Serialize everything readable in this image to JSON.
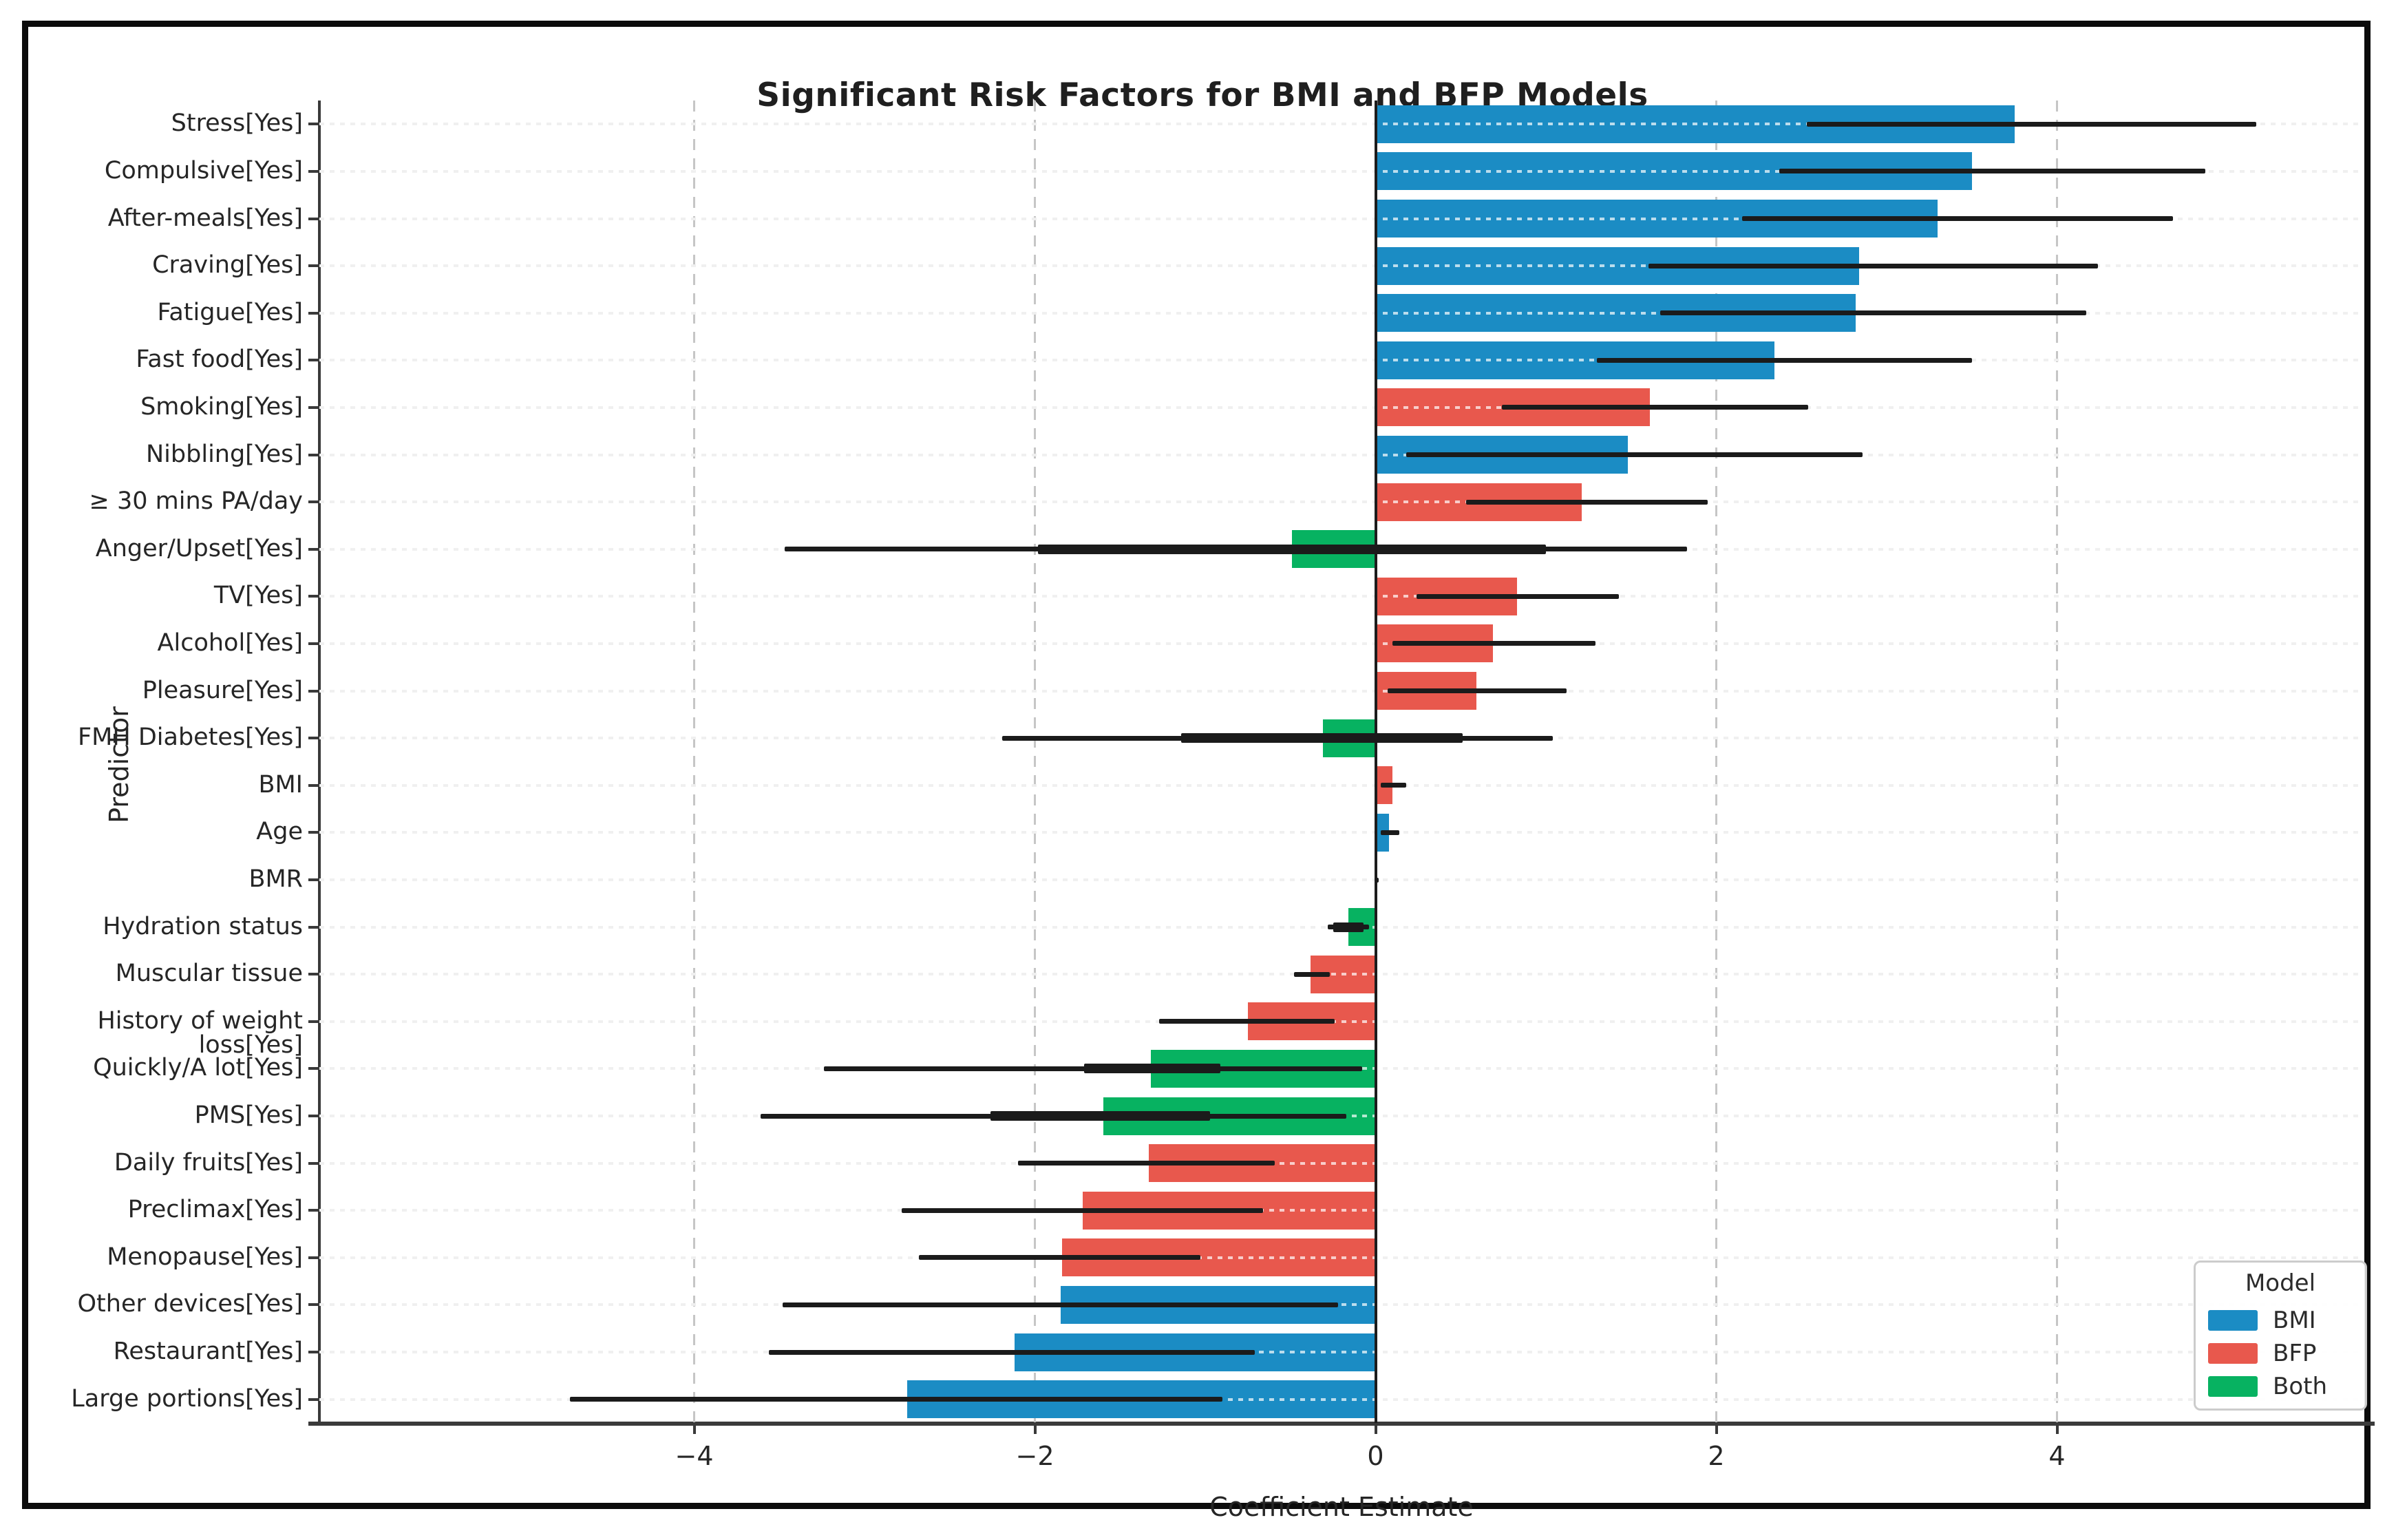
{
  "chart_data": {
    "type": "bar",
    "orientation": "horizontal",
    "title": "Significant Risk Factors for BMI and BFP Models",
    "xlabel": "Coefficient Estimate",
    "ylabel": "Predictor",
    "xlim": [
      -6.2,
      5.8
    ],
    "x_ticks": [
      -4,
      -2,
      0,
      2,
      4
    ],
    "grid": "horizontal-dotted and vertical-dashed, zero line solid",
    "legend": {
      "title": "Model",
      "position": "lower-right",
      "items": [
        {
          "label": "BMI",
          "color": "#1b8cc4"
        },
        {
          "label": "BFP",
          "color": "#e8584d"
        },
        {
          "label": "Both",
          "color": "#07b261"
        }
      ]
    },
    "rows": [
      {
        "predictor": "Stress[Yes]",
        "model": "BMI",
        "value": 3.75,
        "ci": [
          2.53,
          5.17
        ]
      },
      {
        "predictor": "Compulsive[Yes]",
        "model": "BMI",
        "value": 3.5,
        "ci": [
          2.37,
          4.87
        ]
      },
      {
        "predictor": "After-meals[Yes]",
        "model": "BMI",
        "value": 3.3,
        "ci": [
          2.15,
          4.68
        ]
      },
      {
        "predictor": "Craving[Yes]",
        "model": "BMI",
        "value": 2.84,
        "ci": [
          1.6,
          4.24
        ]
      },
      {
        "predictor": "Fatigue[Yes]",
        "model": "BMI",
        "value": 2.82,
        "ci": [
          1.67,
          4.17
        ]
      },
      {
        "predictor": "Fast food[Yes]",
        "model": "BMI",
        "value": 2.34,
        "ci": [
          1.3,
          3.5
        ]
      },
      {
        "predictor": "Smoking[Yes]",
        "model": "BFP",
        "value": 1.61,
        "ci": [
          0.74,
          2.54
        ]
      },
      {
        "predictor": "Nibbling[Yes]",
        "model": "BMI",
        "value": 1.48,
        "ci": [
          0.18,
          2.86
        ]
      },
      {
        "predictor": "≥ 30 mins PA/day",
        "model": "BFP",
        "value": 1.21,
        "ci": [
          0.53,
          1.95
        ]
      },
      {
        "predictor": "Anger/Upset[Yes]",
        "model": "Both",
        "value": -0.49,
        "ci": [
          -3.47,
          1.83
        ],
        "ci_inner": [
          -1.98,
          1.0
        ]
      },
      {
        "predictor": "TV[Yes]",
        "model": "BFP",
        "value": 0.83,
        "ci": [
          0.24,
          1.43
        ]
      },
      {
        "predictor": "Alcohol[Yes]",
        "model": "BFP",
        "value": 0.69,
        "ci": [
          0.1,
          1.29
        ]
      },
      {
        "predictor": "Pleasure[Yes]",
        "model": "BFP",
        "value": 0.59,
        "ci": [
          0.07,
          1.12
        ]
      },
      {
        "predictor": "FMH Diabetes[Yes]",
        "model": "Both",
        "value": -0.31,
        "ci": [
          -2.19,
          1.04
        ],
        "ci_inner": [
          -1.14,
          0.51
        ]
      },
      {
        "predictor": "BMI",
        "model": "BFP",
        "value": 0.1,
        "ci": [
          0.03,
          0.18
        ]
      },
      {
        "predictor": "Age",
        "model": "BMI",
        "value": 0.08,
        "ci": [
          0.03,
          0.14
        ]
      },
      {
        "predictor": "BMR",
        "model": "BMI",
        "value": 0.001,
        "ci": [
          0.0,
          0.002
        ]
      },
      {
        "predictor": "Hydration status",
        "model": "Both",
        "value": -0.16,
        "ci": [
          -0.28,
          -0.04
        ],
        "ci_inner": [
          -0.25,
          -0.07
        ]
      },
      {
        "predictor": "Muscular tissue",
        "model": "BFP",
        "value": -0.38,
        "ci": [
          -0.48,
          -0.27
        ]
      },
      {
        "predictor": "History of weight loss[Yes]",
        "model": "BFP",
        "value": -0.75,
        "ci": [
          -1.27,
          -0.24
        ]
      },
      {
        "predictor": "Quickly/A lot[Yes]",
        "model": "Both",
        "value": -1.32,
        "ci": [
          -3.24,
          -0.08
        ],
        "ci_inner": [
          -1.71,
          -0.91
        ]
      },
      {
        "predictor": "PMS[Yes]",
        "model": "Both",
        "value": -1.6,
        "ci": [
          -3.61,
          -0.17
        ],
        "ci_inner": [
          -2.26,
          -0.97
        ]
      },
      {
        "predictor": "Daily fruits[Yes]",
        "model": "BFP",
        "value": -1.33,
        "ci": [
          -2.1,
          -0.59
        ]
      },
      {
        "predictor": "Preclimax[Yes]",
        "model": "BFP",
        "value": -1.72,
        "ci": [
          -2.78,
          -0.66
        ]
      },
      {
        "predictor": "Menopause[Yes]",
        "model": "BFP",
        "value": -1.84,
        "ci": [
          -2.68,
          -1.03
        ]
      },
      {
        "predictor": "Other devices[Yes]",
        "model": "BMI",
        "value": -1.85,
        "ci": [
          -3.48,
          -0.22
        ]
      },
      {
        "predictor": "Restaurant[Yes]",
        "model": "BMI",
        "value": -2.12,
        "ci": [
          -3.56,
          -0.71
        ]
      },
      {
        "predictor": "Large portions[Yes]",
        "model": "BMI",
        "value": -2.75,
        "ci": [
          -4.73,
          -0.9
        ]
      }
    ]
  }
}
